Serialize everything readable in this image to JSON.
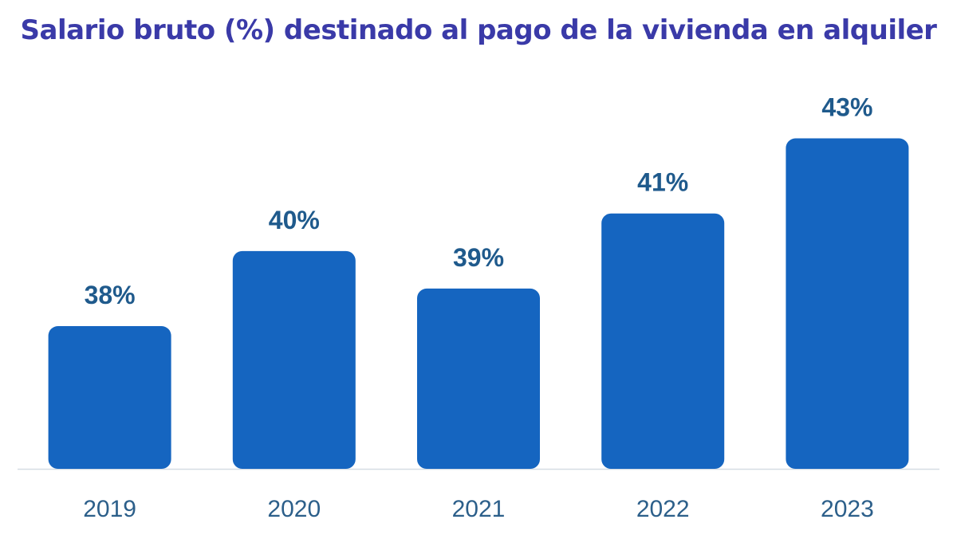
{
  "chart_data": {
    "type": "bar",
    "title": "Salario bruto (%) destinado al pago de la vivienda en alquiler",
    "categories": [
      "2019",
      "2020",
      "2021",
      "2022",
      "2023"
    ],
    "values": [
      38,
      40,
      39,
      41,
      43
    ],
    "value_labels": [
      "38%",
      "40%",
      "39%",
      "41%",
      "43%"
    ],
    "xlabel": "",
    "ylabel": "",
    "ylim": [
      34.2,
      43.5
    ],
    "grid": false,
    "legend": "none"
  },
  "colors": {
    "title": "#3a3aa8",
    "bar": "#1565c0",
    "value_label": "#1f5a8c",
    "tick_label": "#2c5f8a",
    "axis": "#d6dde4"
  }
}
